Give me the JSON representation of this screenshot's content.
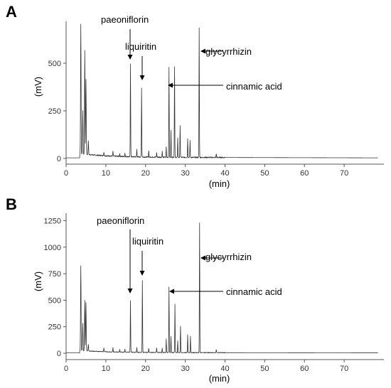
{
  "chart_data": [
    {
      "type": "line",
      "panel_label": "A",
      "xlabel": "(min)",
      "ylabel": "(mV)",
      "xlim": [
        0,
        80
      ],
      "ylim": [
        -30,
        720
      ],
      "x_ticks": [
        0,
        10,
        20,
        30,
        40,
        50,
        60,
        70
      ],
      "y_ticks": [
        0,
        250,
        500
      ],
      "baseline": 5,
      "peaks": [
        {
          "t": 3.7,
          "h": 680
        },
        {
          "t": 4.2,
          "h": 230
        },
        {
          "t": 4.7,
          "h": 545
        },
        {
          "t": 5.0,
          "h": 395
        },
        {
          "t": 5.6,
          "h": 70
        },
        {
          "t": 9.5,
          "h": 20
        },
        {
          "t": 11.8,
          "h": 25
        },
        {
          "t": 13.5,
          "h": 15
        },
        {
          "t": 14.8,
          "h": 18
        },
        {
          "t": 16.2,
          "h": 485
        },
        {
          "t": 17.8,
          "h": 40
        },
        {
          "t": 19.0,
          "h": 365
        },
        {
          "t": 20.8,
          "h": 35
        },
        {
          "t": 22.8,
          "h": 25
        },
        {
          "t": 24.2,
          "h": 30
        },
        {
          "t": 25.2,
          "h": 55
        },
        {
          "t": 25.9,
          "h": 470
        },
        {
          "t": 26.4,
          "h": 140
        },
        {
          "t": 27.3,
          "h": 475
        },
        {
          "t": 28.1,
          "h": 100
        },
        {
          "t": 28.7,
          "h": 170
        },
        {
          "t": 30.6,
          "h": 100
        },
        {
          "t": 31.2,
          "h": 90
        },
        {
          "t": 33.5,
          "h": 680
        },
        {
          "t": 37.8,
          "h": 20
        },
        {
          "t": 43.8,
          "h": 8
        }
      ],
      "annotations": [
        {
          "text": "paeoniflorin",
          "t": 16.2
        },
        {
          "text": "liquiritin",
          "t": 19.0
        },
        {
          "text": "glycyrrhizin",
          "t": 33.5
        },
        {
          "text": "cinnamic acid",
          "t": 25.9
        }
      ]
    },
    {
      "type": "line",
      "panel_label": "B",
      "xlabel": "(min)",
      "ylabel": "(mV)",
      "xlim": [
        0,
        80
      ],
      "ylim": [
        -60,
        1320
      ],
      "x_ticks": [
        0,
        10,
        20,
        30,
        40,
        50,
        60,
        70
      ],
      "y_ticks": [
        0,
        250,
        500,
        750,
        1000,
        1250
      ],
      "baseline": 5,
      "peaks": [
        {
          "t": 3.7,
          "h": 800
        },
        {
          "t": 4.2,
          "h": 260
        },
        {
          "t": 4.7,
          "h": 480
        },
        {
          "t": 5.0,
          "h": 455
        },
        {
          "t": 5.6,
          "h": 60
        },
        {
          "t": 9.5,
          "h": 35
        },
        {
          "t": 11.8,
          "h": 40
        },
        {
          "t": 13.5,
          "h": 25
        },
        {
          "t": 14.8,
          "h": 30
        },
        {
          "t": 16.2,
          "h": 485
        },
        {
          "t": 17.8,
          "h": 45
        },
        {
          "t": 19.2,
          "h": 680
        },
        {
          "t": 20.8,
          "h": 40
        },
        {
          "t": 22.8,
          "h": 45
        },
        {
          "t": 24.2,
          "h": 40
        },
        {
          "t": 25.2,
          "h": 130
        },
        {
          "t": 25.9,
          "h": 620
        },
        {
          "t": 26.4,
          "h": 150
        },
        {
          "t": 27.4,
          "h": 460
        },
        {
          "t": 28.1,
          "h": 110
        },
        {
          "t": 28.8,
          "h": 250
        },
        {
          "t": 30.6,
          "h": 170
        },
        {
          "t": 31.3,
          "h": 155
        },
        {
          "t": 33.6,
          "h": 1220
        },
        {
          "t": 37.8,
          "h": 30
        },
        {
          "t": 43.8,
          "h": 10
        }
      ],
      "annotations": [
        {
          "text": "paeoniflorin",
          "t": 16.2
        },
        {
          "text": "liquiritin",
          "t": 19.2
        },
        {
          "text": "glycyrrhizin",
          "t": 33.6
        },
        {
          "text": "cinnamic acid",
          "t": 25.9
        }
      ]
    }
  ]
}
